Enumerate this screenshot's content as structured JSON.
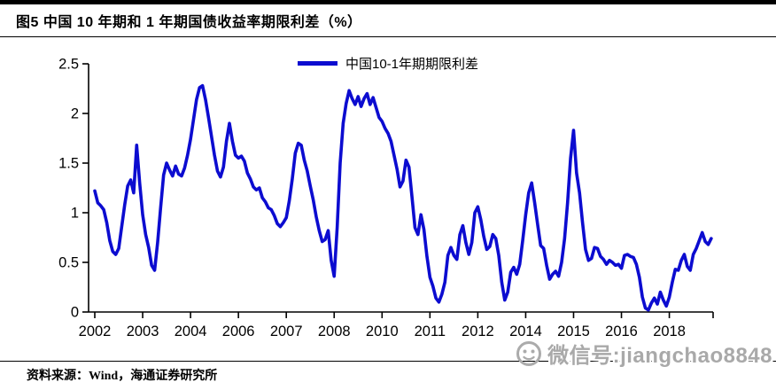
{
  "header": {
    "title": "图5  中国 10 年期和 1 年期国债收益率期限利差（%）"
  },
  "footer": {
    "source": "资料来源：Wind，海通证券研究所"
  },
  "watermark": {
    "icon": "wechat-smiley-icon",
    "text": "微信号:jiangchao8848",
    "color": "#a9a9a9"
  },
  "chart_data": {
    "type": "line",
    "title": "中国 10 年期和 1 年期国债收益率期限利差（%）",
    "legend": [
      {
        "name": "中国10-1年期期限利差",
        "color": "#0c0cd0",
        "position": "top-center"
      }
    ],
    "grid": false,
    "x_start": "2002-01",
    "x_end": "2019-03",
    "frequency": "monthly",
    "x_tick_labels": [
      "2002",
      "2003",
      "2004",
      "2006",
      "2007",
      "2008",
      "2010",
      "2011",
      "2012",
      "2014",
      "2015",
      "2016",
      "2018"
    ],
    "x_tick_months": [
      0,
      16,
      32,
      48,
      64,
      80,
      96,
      112,
      128,
      144,
      160,
      176,
      192
    ],
    "y_tick_labels": [
      "0",
      "0.5",
      "1",
      "1.5",
      "2",
      "2.5"
    ],
    "y_ticks": [
      0,
      0.5,
      1,
      1.5,
      2,
      2.5
    ],
    "ylim": [
      0,
      2.5
    ],
    "series": [
      {
        "name": "中国10-1年期期限利差",
        "values": [
          1.22,
          1.1,
          1.07,
          1.03,
          0.9,
          0.72,
          0.61,
          0.58,
          0.64,
          0.86,
          1.08,
          1.27,
          1.33,
          1.2,
          1.68,
          1.3,
          0.98,
          0.78,
          0.65,
          0.47,
          0.42,
          0.7,
          1.05,
          1.38,
          1.5,
          1.43,
          1.37,
          1.47,
          1.39,
          1.37,
          1.45,
          1.58,
          1.74,
          1.94,
          2.14,
          2.26,
          2.28,
          2.14,
          1.96,
          1.77,
          1.58,
          1.42,
          1.36,
          1.46,
          1.72,
          1.9,
          1.72,
          1.58,
          1.55,
          1.57,
          1.52,
          1.4,
          1.34,
          1.26,
          1.23,
          1.25,
          1.15,
          1.11,
          1.05,
          1.03,
          0.97,
          0.89,
          0.86,
          0.9,
          0.95,
          1.12,
          1.34,
          1.6,
          1.7,
          1.68,
          1.53,
          1.42,
          1.27,
          1.13,
          0.96,
          0.82,
          0.71,
          0.73,
          0.82,
          0.52,
          0.36,
          0.85,
          1.5,
          1.9,
          2.1,
          2.23,
          2.15,
          2.09,
          2.17,
          2.07,
          2.15,
          2.2,
          2.09,
          2.16,
          2.06,
          1.96,
          1.92,
          1.85,
          1.8,
          1.72,
          1.58,
          1.44,
          1.26,
          1.32,
          1.53,
          1.46,
          1.16,
          0.85,
          0.78,
          0.98,
          0.83,
          0.56,
          0.35,
          0.26,
          0.14,
          0.1,
          0.18,
          0.3,
          0.57,
          0.65,
          0.57,
          0.53,
          0.78,
          0.87,
          0.7,
          0.58,
          0.7,
          1.0,
          1.06,
          0.93,
          0.76,
          0.63,
          0.66,
          0.78,
          0.74,
          0.57,
          0.3,
          0.12,
          0.2,
          0.4,
          0.45,
          0.38,
          0.48,
          0.72,
          0.98,
          1.2,
          1.3,
          1.1,
          0.88,
          0.67,
          0.64,
          0.47,
          0.33,
          0.38,
          0.41,
          0.36,
          0.5,
          0.74,
          1.1,
          1.55,
          1.83,
          1.4,
          1.2,
          0.9,
          0.63,
          0.52,
          0.54,
          0.65,
          0.64,
          0.56,
          0.53,
          0.48,
          0.52,
          0.5,
          0.47,
          0.48,
          0.44,
          0.57,
          0.58,
          0.56,
          0.55,
          0.48,
          0.35,
          0.15,
          0.04,
          0.02,
          0.09,
          0.14,
          0.08,
          0.2,
          0.12,
          0.06,
          0.15,
          0.3,
          0.43,
          0.42,
          0.52,
          0.58,
          0.46,
          0.42,
          0.58,
          0.64,
          0.72,
          0.8,
          0.71,
          0.68,
          0.74
        ]
      }
    ]
  }
}
